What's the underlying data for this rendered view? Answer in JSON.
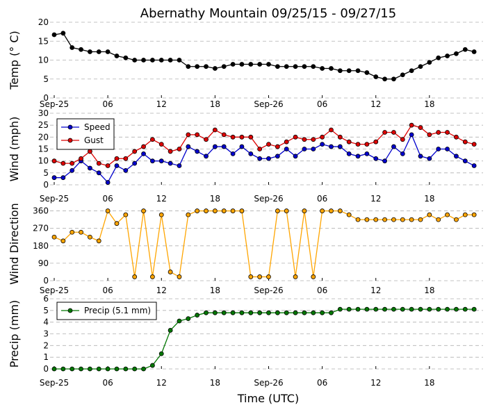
{
  "chart_data": {
    "title": "Abernathy Mountain 09/25/15 - 09/27/15",
    "xlabel": "Time (UTC)",
    "x_tick_labels": [
      "Sep-25",
      "06",
      "12",
      "18",
      "Sep-26",
      "06",
      "12",
      "18"
    ],
    "x_tick_hours": [
      0,
      6,
      12,
      18,
      24,
      30,
      36,
      42
    ],
    "x_range_hours": [
      0,
      48
    ],
    "x_hours": [
      0,
      1,
      2,
      3,
      4,
      5,
      6,
      7,
      8,
      9,
      10,
      11,
      12,
      13,
      14,
      15,
      16,
      17,
      18,
      19,
      20,
      21,
      22,
      23,
      24,
      25,
      26,
      27,
      28,
      29,
      30,
      31,
      32,
      33,
      34,
      35,
      36,
      37,
      38,
      39,
      40,
      41,
      42,
      43,
      44,
      45,
      46,
      47
    ],
    "panels": [
      {
        "id": "temp",
        "type": "line",
        "ylabel": "Temp (° C)",
        "ylim": [
          0,
          20
        ],
        "yticks": [
          0,
          5,
          10,
          15,
          20
        ],
        "series": [
          {
            "name": "Temp",
            "color": "#000000",
            "values": [
              16.7,
              17.1,
              13.3,
              12.8,
              12.2,
              12.2,
              12.2,
              11.1,
              10.6,
              10.0,
              10.0,
              10.0,
              10.0,
              10.0,
              10.0,
              8.3,
              8.3,
              8.3,
              7.8,
              8.3,
              8.9,
              8.9,
              8.9,
              8.9,
              8.9,
              8.3,
              8.3,
              8.3,
              8.3,
              8.3,
              7.8,
              7.8,
              7.2,
              7.2,
              7.2,
              6.7,
              5.6,
              5.0,
              5.0,
              6.1,
              7.2,
              8.3,
              9.4,
              10.6,
              11.1,
              11.7,
              12.8,
              12.2
            ]
          }
        ]
      },
      {
        "id": "wind",
        "type": "line",
        "ylabel": "Wind (mph)",
        "ylim": [
          0,
          30
        ],
        "yticks": [
          0,
          5,
          10,
          15,
          20,
          25,
          30
        ],
        "legend": "top-left",
        "series": [
          {
            "name": "Speed",
            "color": "#0000cc",
            "values": [
              3,
              3,
              6,
              10,
              7,
              5,
              1,
              8,
              6,
              9,
              13,
              10,
              10,
              9,
              8,
              16,
              14,
              12,
              16,
              16,
              13,
              16,
              13,
              11,
              11,
              12,
              15,
              12,
              15,
              15,
              17,
              16,
              16,
              13,
              12,
              13,
              11,
              10,
              16,
              13,
              21,
              12,
              11,
              15,
              15,
              12,
              10,
              8
            ]
          },
          {
            "name": "Gust",
            "color": "#dd0000",
            "values": [
              10,
              9,
              9,
              11,
              14,
              9,
              8,
              11,
              11,
              14,
              16,
              19,
              17,
              14,
              15,
              21,
              21,
              19,
              23,
              21,
              20,
              20,
              20,
              15,
              17,
              16,
              18,
              20,
              19,
              19,
              20,
              23,
              20,
              18,
              17,
              17,
              18,
              22,
              22,
              19,
              25,
              24,
              21,
              22,
              22,
              20,
              18,
              17
            ]
          }
        ]
      },
      {
        "id": "direction",
        "type": "line",
        "ylabel": "Wind Direction",
        "ylim": [
          0,
          380
        ],
        "yticks": [
          0,
          90,
          180,
          270,
          360
        ],
        "series": [
          {
            "name": "Direction",
            "color": "#ffa500",
            "values": [
              225,
              205,
              250,
              250,
              225,
              205,
              360,
              295,
              340,
              20,
              360,
              20,
              340,
              45,
              20,
              340,
              360,
              360,
              360,
              360,
              360,
              360,
              20,
              20,
              20,
              360,
              360,
              20,
              360,
              20,
              360,
              360,
              360,
              340,
              315,
              315,
              315,
              315,
              315,
              315,
              315,
              315,
              340,
              315,
              340,
              315,
              340,
              340
            ]
          }
        ]
      },
      {
        "id": "precip",
        "type": "line",
        "ylabel": "Precip (mm)",
        "ylim": [
          0,
          6
        ],
        "yticks": [
          0,
          1,
          2,
          3,
          4,
          5,
          6
        ],
        "legend": "top-left",
        "series": [
          {
            "name": "Precip (5.1 mm)",
            "color": "#007700",
            "values": [
              0,
              0,
              0,
              0,
              0,
              0,
              0,
              0,
              0,
              0,
              0,
              0.3,
              1.3,
              3.3,
              4.1,
              4.3,
              4.6,
              4.8,
              4.8,
              4.8,
              4.8,
              4.8,
              4.8,
              4.8,
              4.8,
              4.8,
              4.8,
              4.8,
              4.8,
              4.8,
              4.8,
              4.8,
              5.1,
              5.1,
              5.1,
              5.1,
              5.1,
              5.1,
              5.1,
              5.1,
              5.1,
              5.1,
              5.1,
              5.1,
              5.1,
              5.1,
              5.1,
              5.1
            ]
          }
        ]
      }
    ]
  }
}
